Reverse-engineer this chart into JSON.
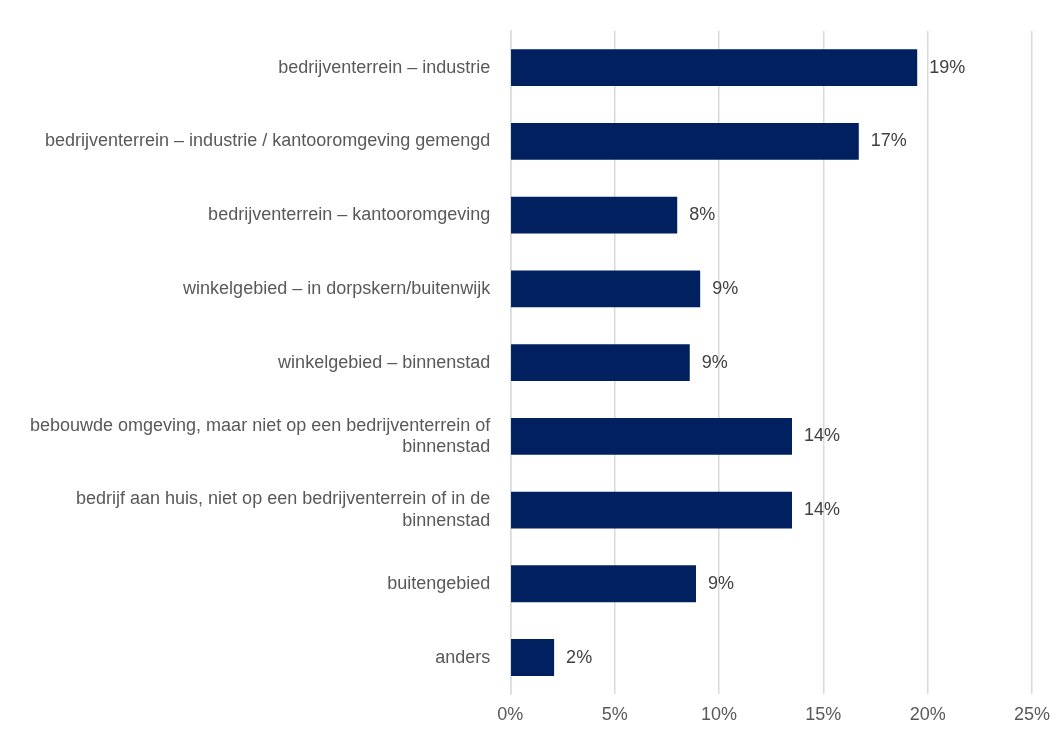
{
  "chart_data": {
    "type": "bar",
    "orientation": "horizontal",
    "categories": [
      "bedrijventerrein – industrie",
      "bedrijventerrein – industrie / kantooromgeving gemengd",
      "bedrijventerrein – kantooromgeving",
      "winkelgebied – in dorpskern/buitenwijk",
      "winkelgebied – binnenstad",
      "bebouwde omgeving, maar niet op een bedrijventerrein of binnenstad",
      "bedrijf aan huis, niet op een bedrijventerrein of in de binnenstad",
      "buitengebied",
      "anders"
    ],
    "values": [
      19.5,
      16.7,
      8.0,
      9.1,
      8.6,
      13.5,
      13.5,
      8.9,
      2.1
    ],
    "value_labels": [
      "19%",
      "17%",
      "8%",
      "9%",
      "9%",
      "14%",
      "14%",
      "9%",
      "2%"
    ],
    "color": "#002060",
    "xlim": [
      0,
      25
    ],
    "xticks": [
      {
        "value": 0,
        "label": "0%"
      },
      {
        "value": 5,
        "label": "5%"
      },
      {
        "value": 10,
        "label": "10%"
      },
      {
        "value": 15,
        "label": "15%"
      },
      {
        "value": 20,
        "label": "20%"
      },
      {
        "value": 25,
        "label": "25%"
      }
    ],
    "grid": "x",
    "legend": false
  }
}
